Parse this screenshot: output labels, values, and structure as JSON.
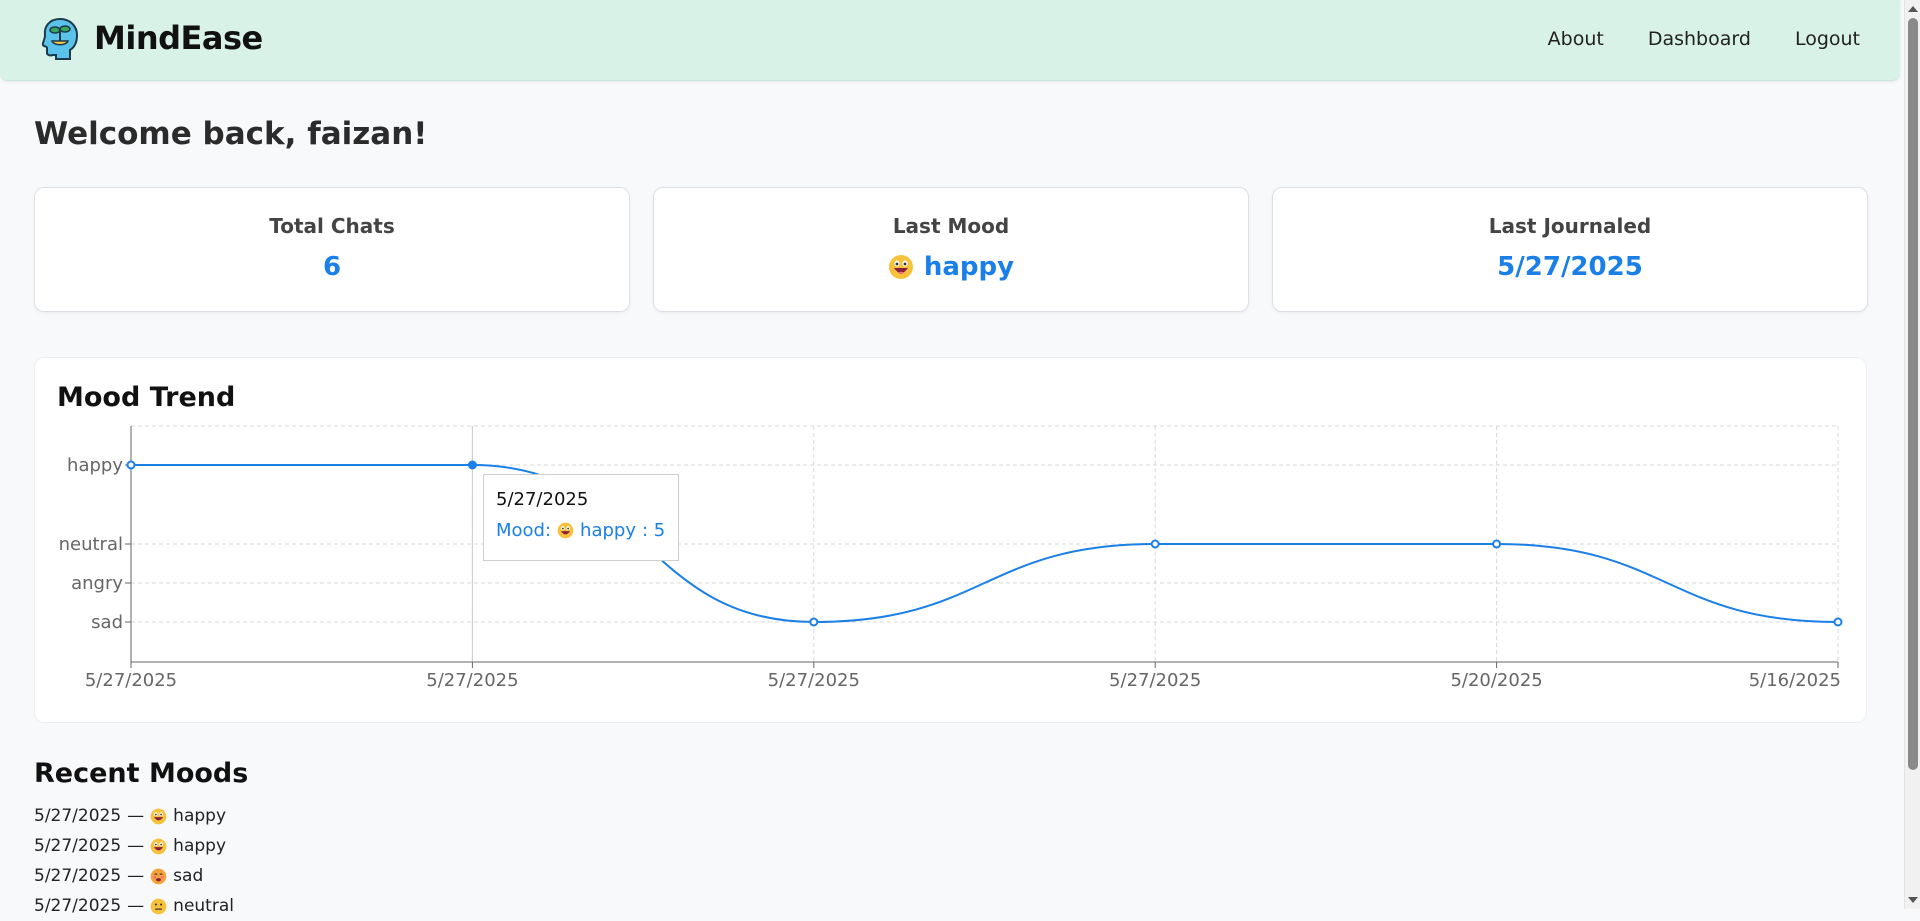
{
  "brand": {
    "name": "MindEase",
    "logo_icon": "head-plant-icon"
  },
  "nav": {
    "links": [
      "About",
      "Dashboard",
      "Logout"
    ]
  },
  "welcome": "Welcome back, faizan!",
  "stats": [
    {
      "label": "Total Chats",
      "value": "6"
    },
    {
      "label": "Last Mood",
      "value": "happy",
      "icon": "happy-emoji-icon"
    },
    {
      "label": "Last Journaled",
      "value": "5/27/2025"
    }
  ],
  "colors": {
    "accent": "#1a7fe6",
    "navbar": "#d9f2e8",
    "background": "#f7f9fb"
  },
  "chart": {
    "title": "Mood Trend"
  },
  "chart_data": {
    "type": "line",
    "title": "Mood Trend",
    "x": [
      "5/27/2025",
      "5/27/2025",
      "5/27/2025",
      "5/27/2025",
      "5/20/2025",
      "5/16/2025"
    ],
    "y_categories": [
      "sad",
      "angry",
      "neutral",
      "happy"
    ],
    "y_values": [
      5,
      1,
      2,
      3,
      4,
      5
    ],
    "series": [
      {
        "values": [
          "happy",
          "happy",
          "sad",
          "neutral",
          "neutral",
          "sad"
        ]
      }
    ],
    "grid": true,
    "tooltip": {
      "date": "5/27/2025",
      "label": "Mood:",
      "mood": "happy",
      "value": ":  5"
    }
  },
  "recent": {
    "title": "Recent Moods",
    "items": [
      {
        "date": "5/27/2025",
        "sep": "—",
        "mood": "happy"
      },
      {
        "date": "5/27/2025",
        "sep": "—",
        "mood": "happy"
      },
      {
        "date": "5/27/2025",
        "sep": "—",
        "mood": "sad"
      },
      {
        "date": "5/27/2025",
        "sep": "—",
        "mood": "neutral"
      }
    ]
  }
}
